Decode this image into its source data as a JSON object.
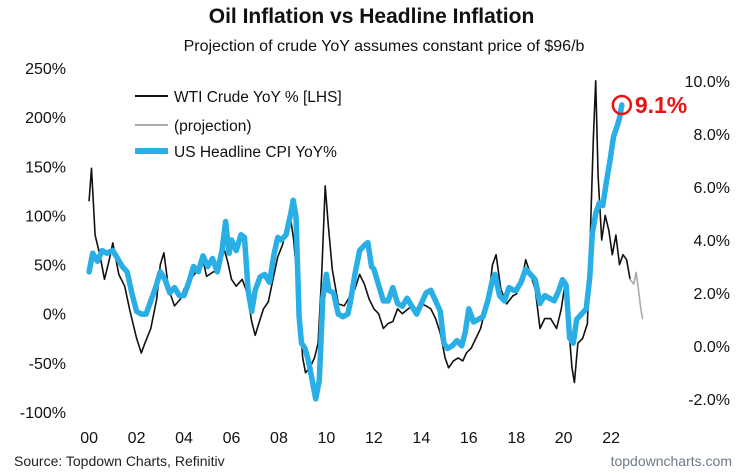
{
  "chart_data": {
    "type": "line",
    "title": "Oil Inflation vs Headline Inflation",
    "subtitle": "Projection of crude YoY assumes constant price of $96/b",
    "source": "Source: Topdown Charts, Refinitiv",
    "brand": "topdowncharts.com",
    "callout": {
      "text": "9.1%",
      "x": 2022.45,
      "y": 9.1,
      "color": "#ee1111"
    },
    "x_axis": {
      "range": [
        1999.7,
        2023.3
      ],
      "ticks": [
        2000,
        2002,
        2004,
        2006,
        2008,
        2010,
        2012,
        2014,
        2016,
        2018,
        2020,
        2022
      ],
      "tick_labels": [
        "00",
        "02",
        "04",
        "06",
        "08",
        "10",
        "12",
        "14",
        "16",
        "18",
        "20",
        "22"
      ]
    },
    "y_left": {
      "range": [
        -100,
        250
      ],
      "ticks": [
        -100,
        -50,
        0,
        50,
        100,
        150,
        200,
        250
      ],
      "tick_labels": [
        "-100%",
        "-50%",
        "0%",
        "50%",
        "100%",
        "150%",
        "200%",
        "250%"
      ]
    },
    "y_right": {
      "range": [
        -2.5,
        10.5
      ],
      "ticks": [
        -2,
        0,
        2,
        4,
        6,
        8,
        10
      ],
      "tick_labels": [
        "-2.0%",
        "0.0%",
        "2.0%",
        "4.0%",
        "6.0%",
        "8.0%",
        "10.0%"
      ]
    },
    "legend": {
      "placement": "top-left"
    },
    "series": [
      {
        "name": "WTI Crude YoY % [LHS]",
        "axis": "left",
        "color": "#111111",
        "points": [
          [
            2000.0,
            115
          ],
          [
            2000.1,
            148
          ],
          [
            2000.25,
            80
          ],
          [
            2000.45,
            60
          ],
          [
            2000.65,
            35
          ],
          [
            2000.85,
            55
          ],
          [
            2001.0,
            72
          ],
          [
            2001.25,
            40
          ],
          [
            2001.5,
            28
          ],
          [
            2001.7,
            5
          ],
          [
            2001.85,
            -10
          ],
          [
            2002.0,
            -25
          ],
          [
            2002.2,
            -40
          ],
          [
            2002.35,
            -30
          ],
          [
            2002.6,
            -15
          ],
          [
            2002.85,
            15
          ],
          [
            2003.0,
            50
          ],
          [
            2003.15,
            62
          ],
          [
            2003.35,
            25
          ],
          [
            2003.6,
            8
          ],
          [
            2003.85,
            15
          ],
          [
            2004.0,
            25
          ],
          [
            2004.2,
            33
          ],
          [
            2004.5,
            42
          ],
          [
            2004.75,
            60
          ],
          [
            2004.95,
            38
          ],
          [
            2005.2,
            42
          ],
          [
            2005.45,
            45
          ],
          [
            2005.7,
            65
          ],
          [
            2005.85,
            52
          ],
          [
            2006.0,
            35
          ],
          [
            2006.2,
            28
          ],
          [
            2006.45,
            35
          ],
          [
            2006.65,
            22
          ],
          [
            2006.85,
            -8
          ],
          [
            2007.0,
            -22
          ],
          [
            2007.15,
            -10
          ],
          [
            2007.35,
            5
          ],
          [
            2007.55,
            12
          ],
          [
            2007.75,
            35
          ],
          [
            2007.95,
            58
          ],
          [
            2008.15,
            70
          ],
          [
            2008.35,
            90
          ],
          [
            2008.5,
            95
          ],
          [
            2008.62,
            75
          ],
          [
            2008.75,
            40
          ],
          [
            2008.88,
            0
          ],
          [
            2009.0,
            -45
          ],
          [
            2009.12,
            -60
          ],
          [
            2009.3,
            -55
          ],
          [
            2009.5,
            -45
          ],
          [
            2009.65,
            -30
          ],
          [
            2009.8,
            40
          ],
          [
            2009.95,
            130
          ],
          [
            2010.08,
            90
          ],
          [
            2010.25,
            45
          ],
          [
            2010.5,
            10
          ],
          [
            2010.75,
            8
          ],
          [
            2011.0,
            18
          ],
          [
            2011.2,
            25
          ],
          [
            2011.4,
            40
          ],
          [
            2011.6,
            30
          ],
          [
            2011.8,
            15
          ],
          [
            2012.0,
            5
          ],
          [
            2012.2,
            0
          ],
          [
            2012.4,
            -15
          ],
          [
            2012.6,
            -10
          ],
          [
            2012.8,
            -8
          ],
          [
            2013.0,
            5
          ],
          [
            2013.2,
            0
          ],
          [
            2013.45,
            5
          ],
          [
            2013.6,
            8
          ],
          [
            2013.8,
            5
          ],
          [
            2014.0,
            10
          ],
          [
            2014.2,
            8
          ],
          [
            2014.4,
            5
          ],
          [
            2014.6,
            -5
          ],
          [
            2014.8,
            -20
          ],
          [
            2015.0,
            -45
          ],
          [
            2015.15,
            -55
          ],
          [
            2015.35,
            -48
          ],
          [
            2015.55,
            -45
          ],
          [
            2015.75,
            -48
          ],
          [
            2015.9,
            -40
          ],
          [
            2016.1,
            -35
          ],
          [
            2016.3,
            -25
          ],
          [
            2016.5,
            -15
          ],
          [
            2016.7,
            5
          ],
          [
            2016.85,
            20
          ],
          [
            2017.0,
            50
          ],
          [
            2017.15,
            60
          ],
          [
            2017.35,
            25
          ],
          [
            2017.6,
            10
          ],
          [
            2017.85,
            18
          ],
          [
            2018.0,
            20
          ],
          [
            2018.2,
            30
          ],
          [
            2018.4,
            55
          ],
          [
            2018.6,
            40
          ],
          [
            2018.8,
            25
          ],
          [
            2019.0,
            -15
          ],
          [
            2019.2,
            -5
          ],
          [
            2019.45,
            -5
          ],
          [
            2019.7,
            -15
          ],
          [
            2019.9,
            5
          ],
          [
            2020.05,
            30
          ],
          [
            2020.2,
            -10
          ],
          [
            2020.35,
            -55
          ],
          [
            2020.45,
            -70
          ],
          [
            2020.6,
            -30
          ],
          [
            2020.8,
            -25
          ],
          [
            2021.0,
            -10
          ],
          [
            2021.12,
            80
          ],
          [
            2021.25,
            180
          ],
          [
            2021.35,
            237
          ],
          [
            2021.45,
            140
          ],
          [
            2021.6,
            75
          ],
          [
            2021.75,
            100
          ],
          [
            2021.9,
            85
          ],
          [
            2022.05,
            60
          ],
          [
            2022.2,
            80
          ],
          [
            2022.35,
            50
          ],
          [
            2022.5,
            60
          ],
          [
            2022.65,
            55
          ],
          [
            2022.8,
            35
          ]
        ]
      },
      {
        "name": "(projection)",
        "axis": "left",
        "color": "#aaaaaa",
        "points": [
          [
            2022.8,
            35
          ],
          [
            2022.95,
            30
          ],
          [
            2023.05,
            42
          ],
          [
            2023.15,
            25
          ],
          [
            2023.25,
            5
          ],
          [
            2023.32,
            -5
          ]
        ]
      },
      {
        "name": "US Headline CPI YoY%",
        "axis": "right",
        "color": "#29aee6",
        "points": [
          [
            2000.0,
            2.8
          ],
          [
            2000.15,
            3.5
          ],
          [
            2000.35,
            3.2
          ],
          [
            2000.55,
            3.6
          ],
          [
            2000.75,
            3.5
          ],
          [
            2001.0,
            3.6
          ],
          [
            2001.2,
            3.3
          ],
          [
            2001.4,
            3.0
          ],
          [
            2001.6,
            2.8
          ],
          [
            2001.8,
            2.0
          ],
          [
            2002.0,
            1.3
          ],
          [
            2002.2,
            1.2
          ],
          [
            2002.4,
            1.2
          ],
          [
            2002.6,
            1.7
          ],
          [
            2002.8,
            2.2
          ],
          [
            2003.0,
            2.8
          ],
          [
            2003.2,
            2.5
          ],
          [
            2003.4,
            2.0
          ],
          [
            2003.6,
            2.2
          ],
          [
            2003.8,
            1.9
          ],
          [
            2004.0,
            1.9
          ],
          [
            2004.2,
            2.4
          ],
          [
            2004.4,
            3.0
          ],
          [
            2004.6,
            2.8
          ],
          [
            2004.8,
            3.4
          ],
          [
            2005.0,
            3.0
          ],
          [
            2005.2,
            3.3
          ],
          [
            2005.4,
            2.8
          ],
          [
            2005.6,
            3.6
          ],
          [
            2005.75,
            4.7
          ],
          [
            2005.9,
            3.5
          ],
          [
            2006.0,
            4.0
          ],
          [
            2006.2,
            3.6
          ],
          [
            2006.4,
            4.2
          ],
          [
            2006.55,
            4.1
          ],
          [
            2006.7,
            2.1
          ],
          [
            2006.85,
            1.3
          ],
          [
            2007.0,
            2.1
          ],
          [
            2007.2,
            2.6
          ],
          [
            2007.4,
            2.7
          ],
          [
            2007.6,
            2.4
          ],
          [
            2007.8,
            3.5
          ],
          [
            2007.95,
            4.1
          ],
          [
            2008.1,
            4.0
          ],
          [
            2008.3,
            4.2
          ],
          [
            2008.5,
            5.0
          ],
          [
            2008.6,
            5.5
          ],
          [
            2008.72,
            4.9
          ],
          [
            2008.85,
            1.1
          ],
          [
            2008.95,
            0.1
          ],
          [
            2009.1,
            -0.1
          ],
          [
            2009.25,
            -0.6
          ],
          [
            2009.4,
            -1.3
          ],
          [
            2009.55,
            -2.0
          ],
          [
            2009.7,
            -1.3
          ],
          [
            2009.85,
            1.8
          ],
          [
            2010.0,
            2.7
          ],
          [
            2010.1,
            2.1
          ],
          [
            2010.3,
            2.0
          ],
          [
            2010.5,
            1.2
          ],
          [
            2010.7,
            1.1
          ],
          [
            2010.9,
            1.2
          ],
          [
            2011.0,
            1.6
          ],
          [
            2011.2,
            2.7
          ],
          [
            2011.4,
            3.6
          ],
          [
            2011.6,
            3.8
          ],
          [
            2011.75,
            3.9
          ],
          [
            2011.9,
            3.0
          ],
          [
            2012.0,
            2.9
          ],
          [
            2012.2,
            2.3
          ],
          [
            2012.4,
            1.7
          ],
          [
            2012.6,
            1.7
          ],
          [
            2012.8,
            2.2
          ],
          [
            2013.0,
            1.6
          ],
          [
            2013.2,
            1.5
          ],
          [
            2013.4,
            1.8
          ],
          [
            2013.6,
            1.5
          ],
          [
            2013.8,
            1.2
          ],
          [
            2014.0,
            1.6
          ],
          [
            2014.2,
            2.0
          ],
          [
            2014.4,
            2.1
          ],
          [
            2014.6,
            1.7
          ],
          [
            2014.8,
            1.3
          ],
          [
            2014.95,
            0.1
          ],
          [
            2015.1,
            -0.1
          ],
          [
            2015.3,
            0.0
          ],
          [
            2015.5,
            0.2
          ],
          [
            2015.7,
            0.0
          ],
          [
            2015.85,
            0.5
          ],
          [
            2016.0,
            1.4
          ],
          [
            2016.2,
            0.9
          ],
          [
            2016.4,
            1.0
          ],
          [
            2016.6,
            1.1
          ],
          [
            2016.8,
            1.7
          ],
          [
            2017.0,
            2.5
          ],
          [
            2017.1,
            2.7
          ],
          [
            2017.3,
            1.9
          ],
          [
            2017.5,
            1.7
          ],
          [
            2017.7,
            2.2
          ],
          [
            2017.9,
            2.1
          ],
          [
            2018.0,
            2.1
          ],
          [
            2018.2,
            2.4
          ],
          [
            2018.4,
            2.9
          ],
          [
            2018.6,
            2.7
          ],
          [
            2018.8,
            2.5
          ],
          [
            2019.0,
            1.6
          ],
          [
            2019.2,
            1.9
          ],
          [
            2019.4,
            1.8
          ],
          [
            2019.6,
            1.7
          ],
          [
            2019.8,
            2.1
          ],
          [
            2019.95,
            2.5
          ],
          [
            2020.1,
            2.3
          ],
          [
            2020.25,
            0.3
          ],
          [
            2020.4,
            0.1
          ],
          [
            2020.55,
            1.0
          ],
          [
            2020.75,
            1.2
          ],
          [
            2020.95,
            1.4
          ],
          [
            2021.1,
            2.6
          ],
          [
            2021.2,
            4.2
          ],
          [
            2021.35,
            5.0
          ],
          [
            2021.5,
            5.4
          ],
          [
            2021.65,
            5.3
          ],
          [
            2021.8,
            6.2
          ],
          [
            2021.95,
            7.0
          ],
          [
            2022.1,
            7.9
          ],
          [
            2022.25,
            8.3
          ],
          [
            2022.35,
            8.6
          ],
          [
            2022.45,
            9.1
          ]
        ]
      }
    ]
  }
}
